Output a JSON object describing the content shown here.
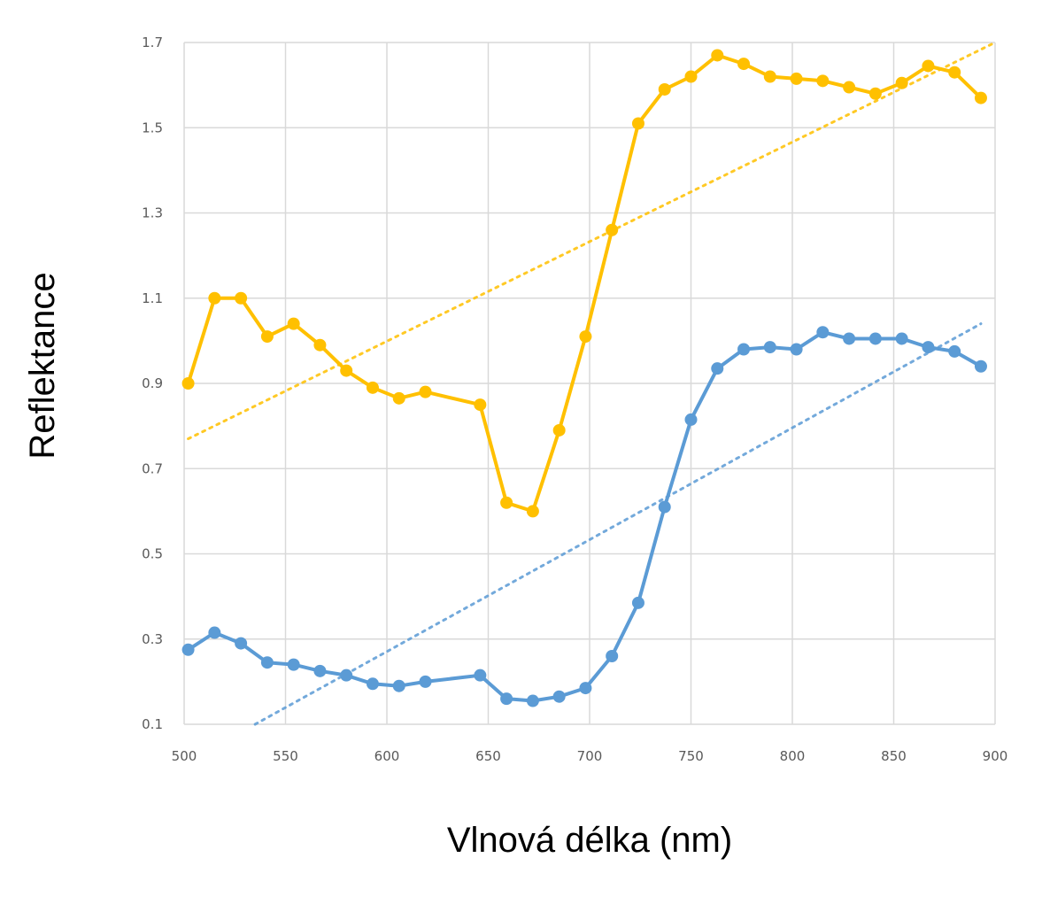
{
  "chart_data": {
    "type": "line",
    "xlabel": "Vlnová délka (nm)",
    "ylabel": "Reflektance",
    "xlim": [
      500,
      900
    ],
    "ylim": [
      0.1,
      1.7
    ],
    "x_ticks": [
      "500",
      "550",
      "600",
      "650",
      "700",
      "750",
      "800",
      "850",
      "900"
    ],
    "y_ticks": [
      "0.1",
      "0.3",
      "0.5",
      "0.7",
      "0.9",
      "1.1",
      "1.3",
      "1.5",
      "1.7"
    ],
    "grid": true,
    "legend": "none",
    "series": [
      {
        "color": "#FFC000",
        "x": [
          502,
          515,
          528,
          541,
          554,
          567,
          580,
          593,
          606,
          619,
          646,
          659,
          672,
          685,
          698,
          711,
          724,
          737,
          750,
          763,
          776,
          789,
          802,
          815,
          828,
          841,
          854,
          867,
          880,
          893
        ],
        "y": [
          0.9,
          1.1,
          1.1,
          1.01,
          1.04,
          0.99,
          0.93,
          0.89,
          0.865,
          0.88,
          0.85,
          0.62,
          0.6,
          0.79,
          1.01,
          1.26,
          1.51,
          1.59,
          1.62,
          1.67,
          1.65,
          1.62,
          1.615,
          1.61,
          1.595,
          1.58,
          1.605,
          1.645,
          1.63,
          1.57
        ],
        "trendline": {
          "type": "linear",
          "x": [
            502,
            900
          ],
          "y": [
            0.77,
            1.7
          ]
        }
      },
      {
        "color": "#5B9BD5",
        "x": [
          502,
          515,
          528,
          541,
          554,
          567,
          580,
          593,
          606,
          619,
          646,
          659,
          672,
          685,
          698,
          711,
          724,
          737,
          750,
          763,
          776,
          789,
          802,
          815,
          828,
          841,
          854,
          867,
          880,
          893
        ],
        "y": [
          0.275,
          0.315,
          0.29,
          0.245,
          0.24,
          0.225,
          0.215,
          0.195,
          0.19,
          0.2,
          0.215,
          0.16,
          0.155,
          0.165,
          0.185,
          0.26,
          0.385,
          0.61,
          0.815,
          0.935,
          0.98,
          0.985,
          0.98,
          1.02,
          1.005,
          1.005,
          1.005,
          0.985,
          0.975,
          0.94
        ],
        "trendline": {
          "type": "linear",
          "x": [
            535,
            893
          ],
          "y": [
            0.1,
            1.04
          ]
        }
      }
    ]
  }
}
